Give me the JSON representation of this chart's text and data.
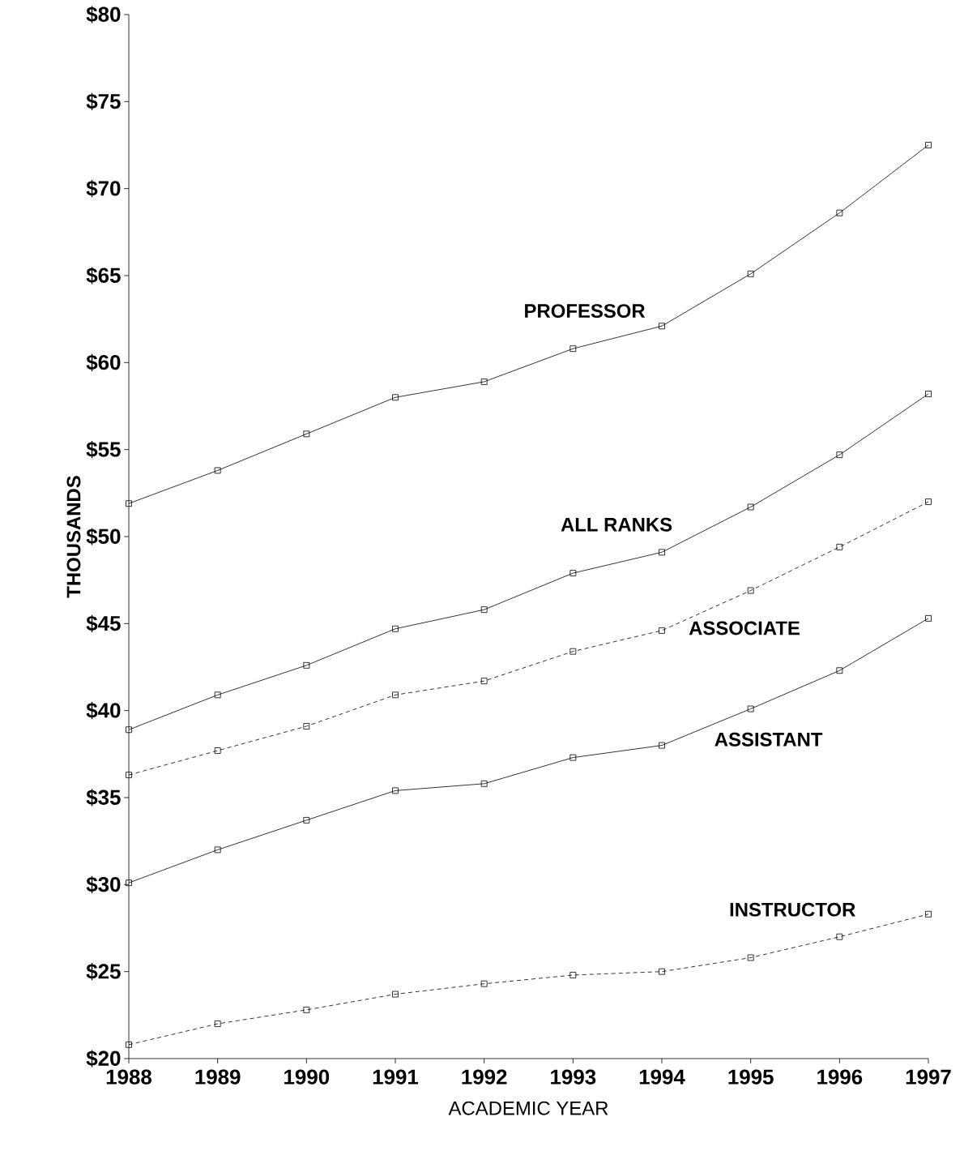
{
  "chart_data": {
    "type": "line",
    "xlabel": "ACADEMIC YEAR",
    "ylabel": "THOUSANDS",
    "x": [
      1988,
      1989,
      1990,
      1991,
      1992,
      1993,
      1994,
      1995,
      1996,
      1997
    ],
    "xlim": [
      1988,
      1997
    ],
    "xticks": [
      1988,
      1989,
      1990,
      1991,
      1992,
      1993,
      1994,
      1995,
      1996,
      1997
    ],
    "ylim": [
      20,
      80
    ],
    "yticks": [
      {
        "value": 20,
        "label": "$20"
      },
      {
        "value": 25,
        "label": "$25"
      },
      {
        "value": 30,
        "label": "$30"
      },
      {
        "value": 35,
        "label": "$35"
      },
      {
        "value": 40,
        "label": "$40"
      },
      {
        "value": 45,
        "label": "$45"
      },
      {
        "value": 50,
        "label": "$50"
      },
      {
        "value": 55,
        "label": "$55"
      },
      {
        "value": 60,
        "label": "$60"
      },
      {
        "value": 65,
        "label": "$65"
      },
      {
        "value": 70,
        "label": "$70"
      },
      {
        "value": 75,
        "label": "$75"
      },
      {
        "value": 80,
        "label": "$80"
      }
    ],
    "grid": false,
    "legend": false,
    "marker": "square",
    "line_style": "solid",
    "series": [
      {
        "name": "PROFESSOR",
        "color": "#000000",
        "values": [
          51.9,
          53.8,
          55.9,
          58.0,
          58.9,
          60.8,
          62.1,
          65.1,
          68.6,
          72.5
        ]
      },
      {
        "name": "ALL RANKS",
        "color": "#000000",
        "values": [
          38.9,
          40.9,
          42.6,
          44.7,
          45.8,
          47.9,
          49.1,
          51.7,
          54.7,
          58.2
        ]
      },
      {
        "name": "ASSOCIATE",
        "color": "#000000",
        "line_style": "dashed",
        "values": [
          36.3,
          37.7,
          39.1,
          40.9,
          41.7,
          43.4,
          44.6,
          46.9,
          49.4,
          52.0
        ]
      },
      {
        "name": "ASSISTANT",
        "color": "#000000",
        "values": [
          30.1,
          32.0,
          33.7,
          35.4,
          35.8,
          37.3,
          38.0,
          40.1,
          42.3,
          45.3
        ]
      },
      {
        "name": "INSTRUCTOR",
        "color": "#000000",
        "line_style": "dashed",
        "values": [
          20.8,
          22.0,
          22.8,
          23.7,
          24.3,
          24.8,
          25.0,
          25.8,
          27.0,
          28.3
        ]
      }
    ]
  }
}
